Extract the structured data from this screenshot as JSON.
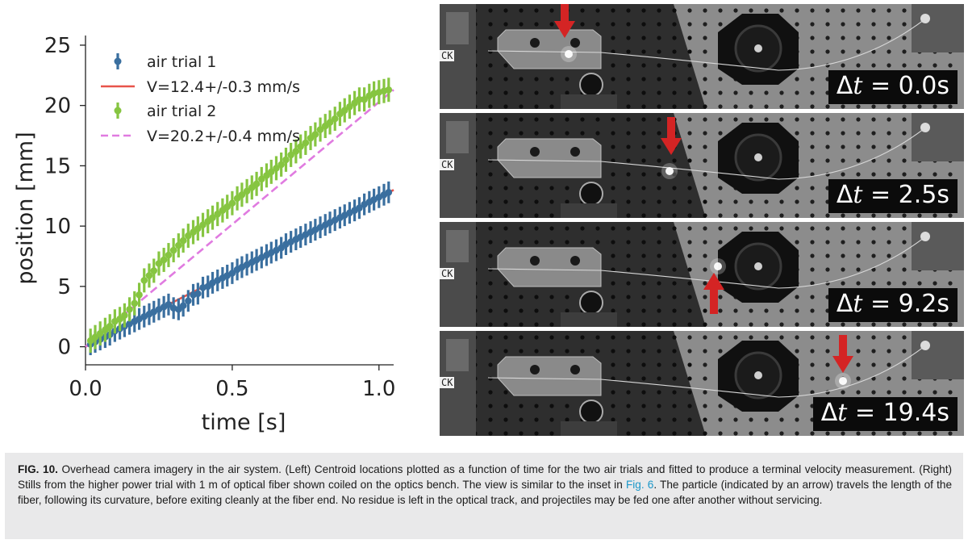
{
  "chart_data": {
    "type": "scatter",
    "xlabel": "time [s]",
    "ylabel": "position [mm]",
    "xlim": [
      0.0,
      1.05
    ],
    "ylim": [
      -1.5,
      25.8
    ],
    "xticks": [
      0.0,
      0.5,
      1.0
    ],
    "xtick_labels": [
      "0.0",
      "0.5",
      "1.0"
    ],
    "yticks": [
      0,
      5,
      10,
      15,
      20,
      25
    ],
    "ytick_labels": [
      "0",
      "5",
      "10",
      "15",
      "20",
      "25"
    ],
    "legend_position": "top-left",
    "series": [
      {
        "name": "air trial 1",
        "kind": "errorbar",
        "color": "#3a6f9f",
        "x": [
          0.017,
          0.033,
          0.05,
          0.067,
          0.083,
          0.1,
          0.117,
          0.133,
          0.15,
          0.167,
          0.183,
          0.2,
          0.217,
          0.233,
          0.25,
          0.267,
          0.283,
          0.3,
          0.317,
          0.333,
          0.35,
          0.367,
          0.383,
          0.4,
          0.417,
          0.433,
          0.45,
          0.467,
          0.483,
          0.5,
          0.517,
          0.533,
          0.55,
          0.567,
          0.583,
          0.6,
          0.617,
          0.633,
          0.65,
          0.667,
          0.683,
          0.7,
          0.717,
          0.733,
          0.75,
          0.767,
          0.783,
          0.8,
          0.817,
          0.833,
          0.85,
          0.867,
          0.883,
          0.9,
          0.917,
          0.933,
          0.95,
          0.967,
          0.983,
          1.0,
          1.017,
          1.033
        ],
        "y": [
          0.2,
          0.4,
          0.6,
          0.8,
          1.0,
          1.3,
          1.5,
          1.7,
          1.9,
          2.1,
          2.3,
          2.5,
          2.7,
          2.9,
          3.1,
          3.3,
          3.5,
          3.2,
          3.1,
          3.4,
          3.8,
          4.3,
          4.4,
          4.9,
          5.0,
          5.3,
          5.5,
          5.7,
          5.9,
          6.1,
          6.4,
          6.6,
          6.8,
          7.0,
          7.2,
          7.4,
          7.6,
          7.8,
          8.0,
          8.2,
          8.5,
          8.7,
          8.9,
          9.1,
          9.3,
          9.5,
          9.7,
          9.9,
          10.1,
          10.3,
          10.5,
          10.7,
          10.9,
          11.1,
          11.3,
          11.5,
          11.8,
          12.0,
          12.2,
          12.4,
          12.6,
          12.8
        ],
        "err": [
          0.9,
          0.9,
          0.9,
          0.9,
          0.9,
          0.9,
          0.9,
          0.9,
          0.9,
          0.9,
          0.9,
          0.9,
          0.9,
          0.9,
          0.9,
          0.9,
          0.9,
          0.9,
          0.9,
          0.9,
          0.9,
          0.9,
          0.9,
          0.9,
          0.9,
          0.9,
          0.9,
          0.9,
          0.9,
          0.9,
          0.9,
          0.9,
          0.9,
          0.9,
          0.9,
          0.9,
          0.9,
          0.9,
          0.9,
          0.9,
          0.9,
          0.9,
          0.9,
          0.9,
          0.9,
          0.9,
          0.9,
          0.9,
          0.9,
          0.9,
          0.9,
          0.9,
          0.9,
          0.9,
          0.9,
          0.9,
          0.9,
          0.9,
          0.9,
          0.9,
          0.9,
          0.9
        ]
      },
      {
        "name": "V=12.4+/-0.3 mm/s",
        "kind": "line",
        "color": "#e8544a",
        "dash": "solid",
        "x": [
          0.0,
          1.05
        ],
        "y": [
          0.0,
          13.0
        ]
      },
      {
        "name": "air trial 2",
        "kind": "errorbar",
        "color": "#86c541",
        "x": [
          0.017,
          0.033,
          0.05,
          0.067,
          0.083,
          0.1,
          0.117,
          0.133,
          0.15,
          0.167,
          0.183,
          0.2,
          0.217,
          0.233,
          0.25,
          0.267,
          0.283,
          0.3,
          0.317,
          0.333,
          0.35,
          0.367,
          0.383,
          0.4,
          0.417,
          0.433,
          0.45,
          0.467,
          0.483,
          0.5,
          0.517,
          0.533,
          0.55,
          0.567,
          0.583,
          0.6,
          0.617,
          0.633,
          0.65,
          0.667,
          0.683,
          0.7,
          0.717,
          0.733,
          0.75,
          0.767,
          0.783,
          0.8,
          0.817,
          0.833,
          0.85,
          0.867,
          0.883,
          0.9,
          0.917,
          0.933,
          0.95,
          0.967,
          0.983,
          1.0,
          1.017,
          1.033
        ],
        "y": [
          0.5,
          0.8,
          1.1,
          1.4,
          1.7,
          2.1,
          2.3,
          2.6,
          3.1,
          3.6,
          4.3,
          5.5,
          5.9,
          6.3,
          6.9,
          7.2,
          7.6,
          8.0,
          8.4,
          8.8,
          9.2,
          9.5,
          9.8,
          10.1,
          10.4,
          10.7,
          11.0,
          11.3,
          11.6,
          11.9,
          12.3,
          12.6,
          12.9,
          13.2,
          13.5,
          13.9,
          14.2,
          14.5,
          14.8,
          15.1,
          15.5,
          15.9,
          16.2,
          16.6,
          16.9,
          17.3,
          17.6,
          18.0,
          18.3,
          18.6,
          18.9,
          19.3,
          19.6,
          19.9,
          20.2,
          20.5,
          20.5,
          20.8,
          21.0,
          21.1,
          21.2,
          21.3
        ],
        "err": [
          1.0,
          1.0,
          1.0,
          1.0,
          1.0,
          1.0,
          1.0,
          1.0,
          1.0,
          1.0,
          1.0,
          1.0,
          1.0,
          1.0,
          1.0,
          1.0,
          1.0,
          1.0,
          1.0,
          1.0,
          1.0,
          1.0,
          1.0,
          1.0,
          1.0,
          1.0,
          1.0,
          1.0,
          1.0,
          1.0,
          1.0,
          1.0,
          1.0,
          1.0,
          1.0,
          1.0,
          1.0,
          1.0,
          1.0,
          1.0,
          1.0,
          1.0,
          1.0,
          1.0,
          1.0,
          1.0,
          1.0,
          1.0,
          1.0,
          1.0,
          1.0,
          1.0,
          1.0,
          1.0,
          1.0,
          1.0,
          1.0,
          1.0,
          1.0,
          1.0,
          1.0,
          1.0
        ]
      },
      {
        "name": "V=20.2+/-0.4 mm/s",
        "kind": "line",
        "color": "#e07be0",
        "dash": "dashed",
        "x": [
          0.0,
          1.05
        ],
        "y": [
          0.0,
          21.3
        ]
      }
    ]
  },
  "stills": {
    "frames": [
      {
        "dt_prefix": "Δ",
        "dt_var": "t",
        "dt_value": " = 0.0s",
        "side_text": "CK",
        "arrow": "down"
      },
      {
        "dt_prefix": "Δ",
        "dt_var": "t",
        "dt_value": " = 2.5s",
        "side_text": "CK",
        "arrow": "down"
      },
      {
        "dt_prefix": "Δ",
        "dt_var": "t",
        "dt_value": " = 9.2s",
        "side_text": "CK",
        "arrow": "up"
      },
      {
        "dt_prefix": "Δ",
        "dt_var": "t",
        "dt_value": " = 19.4s",
        "side_text": "CK",
        "arrow": "down"
      }
    ],
    "arrow_color": "#d42424"
  },
  "caption": {
    "fig_label": "FIG. 10.",
    "text_1": " Overhead camera imagery in the air system. (Left) Centroid locations plotted as a function of time for the two air trials and fitted to produce a terminal velocity measurement. (Right) Stills from the higher power trial with 1 m of optical fiber shown coiled on the optics bench. The view is similar to the inset in ",
    "link_text": "Fig. 6",
    "text_2": ". The particle (indicated by an arrow) travels the length of the fiber, following its curvature, before exiting cleanly at the fiber end. No residue is left in the optical track, and projectiles may be fed one after another without servicing."
  }
}
